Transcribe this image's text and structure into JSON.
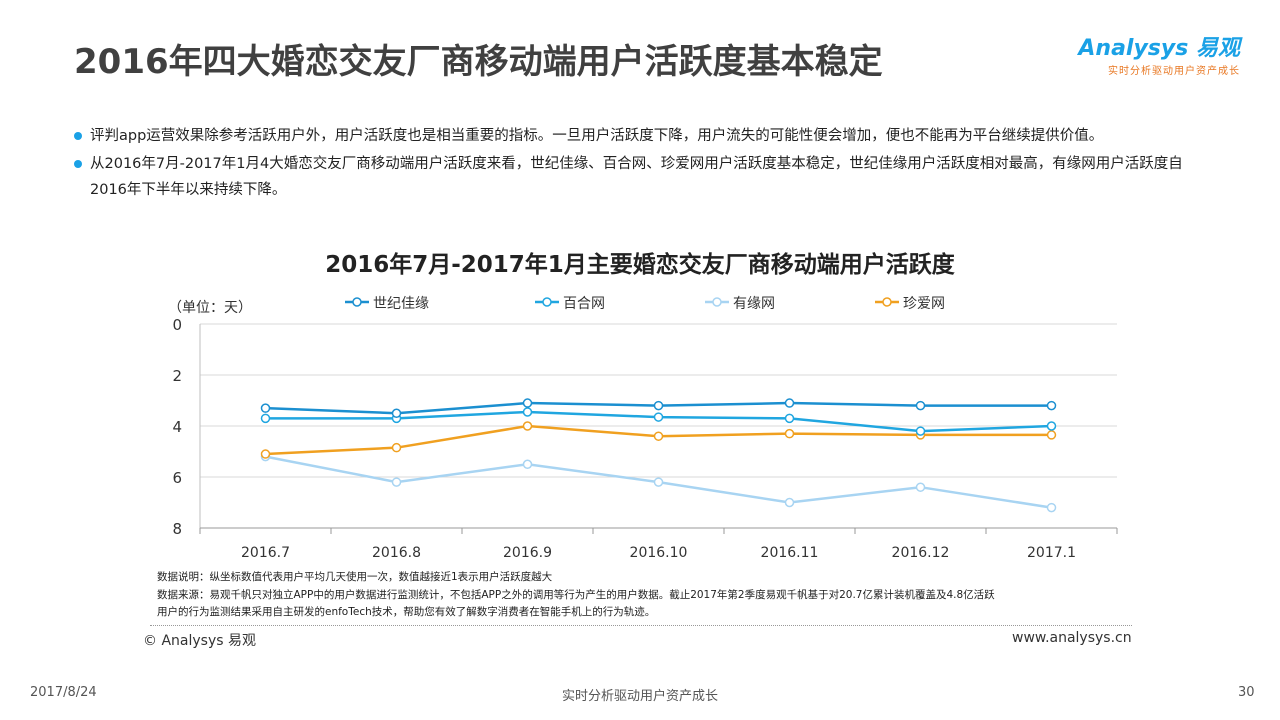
{
  "title": "2016年四大婚恋交友厂商移动端用户活跃度基本稳定",
  "logo": {
    "name": "Analysys 易观",
    "slogan": "实时分析驱动用户资产成长"
  },
  "bullets": [
    "评判app运营效果除参考活跃用户外，用户活跃度也是相当重要的指标。一旦用户活跃度下降，用户流失的可能性便会增加，便也不能再为平台继续提供价值。",
    "从2016年7月-2017年1月4大婚恋交友厂商移动端用户活跃度来看，世纪佳缘、百合网、珍爱网用户活跃度基本稳定，世纪佳缘用户活跃度相对最高，有缘网用户活跃度自2016年下半年以来持续下降。"
  ],
  "chart_data": {
    "type": "line",
    "title": "2016年7月-2017年1月主要婚恋交友厂商移动端用户活跃度",
    "ylabel": "（单位：天）",
    "categories": [
      "2016.7",
      "2016.8",
      "2016.9",
      "2016.10",
      "2016.11",
      "2016.12",
      "2017.1"
    ],
    "ylim": [
      0,
      8
    ],
    "y_reversed": true,
    "yticks": [
      0,
      2,
      4,
      6,
      8
    ],
    "grid": true,
    "legend": "top",
    "series": [
      {
        "name": "世纪佳缘",
        "color": "#1b8fd0",
        "values": [
          3.3,
          3.5,
          3.1,
          3.2,
          3.1,
          3.2,
          3.2
        ]
      },
      {
        "name": "百合网",
        "color": "#20a6e0",
        "values": [
          3.7,
          3.7,
          3.45,
          3.65,
          3.7,
          4.2,
          4.0
        ]
      },
      {
        "name": "有缘网",
        "color": "#a8d4f2",
        "values": [
          5.2,
          6.2,
          5.5,
          6.2,
          7.0,
          6.4,
          7.2
        ]
      },
      {
        "name": "珍爱网",
        "color": "#f0a020",
        "values": [
          5.1,
          4.85,
          4.0,
          4.4,
          4.3,
          4.35,
          4.35
        ]
      }
    ]
  },
  "notes": [
    "数据说明：纵坐标数值代表用户平均几天使用一次，数值越接近1表示用户活跃度越大",
    "数据来源：易观千帆只对独立APP中的用户数据进行监测统计，不包括APP之外的调用等行为产生的用户数据。截止2017年第2季度易观千帆基于对20.7亿累计装机覆盖及4.8亿活跃",
    "用户的行为监测结果采用自主研发的enfoTech技术，帮助您有效了解数字消费者在智能手机上的行为轨迹。"
  ],
  "copyright": "© Analysys 易观",
  "website": "www.analysys.cn",
  "footer": {
    "date": "2017/8/24",
    "slogan": "实时分析驱动用户资产成长",
    "page": "30"
  }
}
